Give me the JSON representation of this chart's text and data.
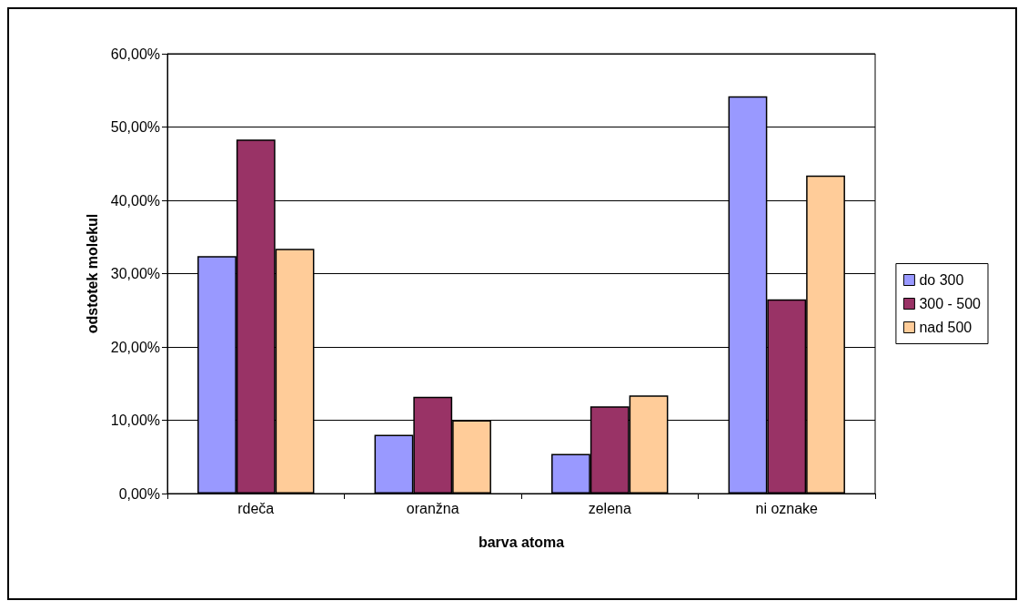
{
  "chart_data": {
    "type": "bar",
    "xlabel": "barva atoma",
    "ylabel": "odstotek molekul",
    "categories": [
      "rdeča",
      "oranžna",
      "zelena",
      "ni oznake"
    ],
    "series": [
      {
        "name": "do 300",
        "color": "#9999ff",
        "values": [
          32.4,
          8.0,
          5.4,
          54.2
        ]
      },
      {
        "name": "300 - 500",
        "color": "#993366",
        "values": [
          48.3,
          13.2,
          11.9,
          26.5
        ]
      },
      {
        "name": "nad 500",
        "color": "#ffcc99",
        "values": [
          33.4,
          10.0,
          13.4,
          43.4
        ]
      }
    ],
    "ylim": [
      0,
      60
    ],
    "yticks": [
      {
        "value": 0,
        "label": "0,00%"
      },
      {
        "value": 10,
        "label": "10,00%"
      },
      {
        "value": 20,
        "label": "20,00%"
      },
      {
        "value": 30,
        "label": "30,00%"
      },
      {
        "value": 40,
        "label": "40,00%"
      },
      {
        "value": 50,
        "label": "50,00%"
      },
      {
        "value": 60,
        "label": "60,00%"
      }
    ],
    "grid": "y",
    "legend": "right"
  }
}
